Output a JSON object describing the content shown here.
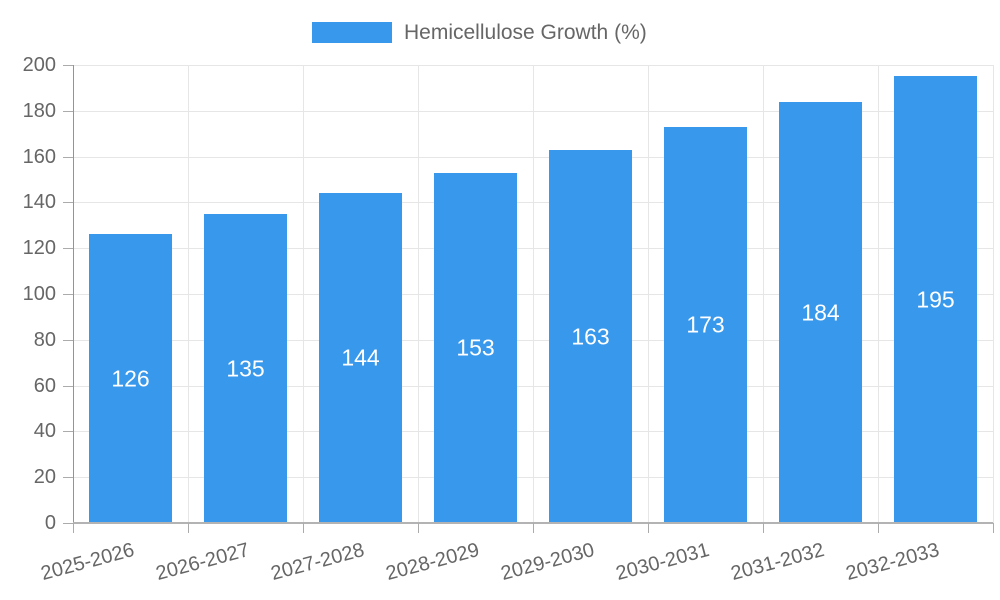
{
  "colors": {
    "bar": "#3898ec",
    "gridline": "#e6e6e6",
    "axis_line": "#b3b3b3",
    "tick_mark": "#ababab",
    "axis_text": "#666666",
    "value_text": "#ffffff",
    "background": "#ffffff"
  },
  "chart_data": {
    "type": "bar",
    "title": "",
    "legend": [
      "Hemicellulose Growth (%)"
    ],
    "legend_position": "top-center",
    "categories": [
      "2025-2026",
      "2026-2027",
      "2027-2028",
      "2028-2029",
      "2029-2030",
      "2030-2031",
      "2031-2032",
      "2032-2033"
    ],
    "values": [
      126,
      135,
      144,
      153,
      163,
      173,
      184,
      195
    ],
    "value_labels_inside_bars": true,
    "xlabel": "",
    "ylabel": "",
    "ylim": [
      0,
      200
    ],
    "yticks": [
      0,
      20,
      40,
      60,
      80,
      100,
      120,
      140,
      160,
      180,
      200
    ],
    "grid": true,
    "x_tick_label_rotation_deg": -15,
    "bar_color": "#3898ec"
  }
}
